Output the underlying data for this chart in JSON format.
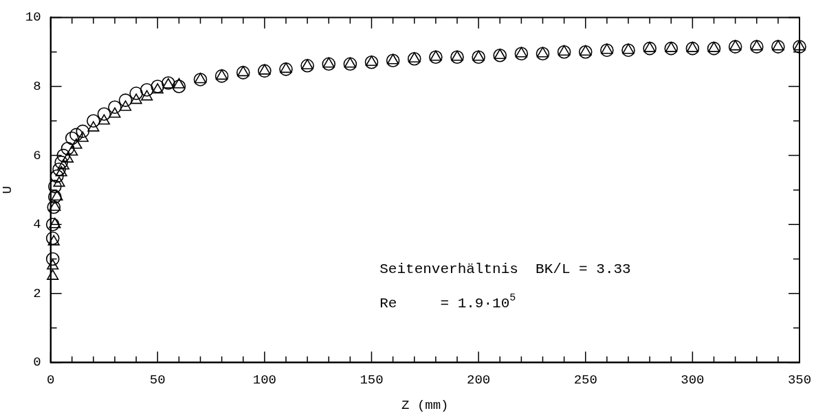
{
  "chart_data": {
    "type": "scatter",
    "xlabel": "Z (mm)",
    "ylabel": "U",
    "xlim": [
      0,
      350
    ],
    "ylim": [
      0,
      10
    ],
    "xticks": [
      0,
      {
        "value": 10,
        "label": null
      },
      {
        "value": 20,
        "label": null
      },
      {
        "value": 30,
        "label": null
      },
      {
        "value": 40,
        "label": null
      },
      50,
      {
        "value": 60,
        "label": null
      },
      {
        "value": 70,
        "label": null
      },
      {
        "value": 80,
        "label": null
      },
      {
        "value": 90,
        "label": null
      },
      100,
      {
        "value": 110,
        "label": null
      },
      {
        "value": 120,
        "label": null
      },
      {
        "value": 130,
        "label": null
      },
      {
        "value": 140,
        "label": null
      },
      150,
      {
        "value": 160,
        "label": null
      },
      {
        "value": 170,
        "label": null
      },
      {
        "value": 180,
        "label": null
      },
      {
        "value": 190,
        "label": null
      },
      200,
      {
        "value": 210,
        "label": null
      },
      {
        "value": 220,
        "label": null
      },
      {
        "value": 230,
        "label": null
      },
      {
        "value": 240,
        "label": null
      },
      250,
      {
        "value": 260,
        "label": null
      },
      {
        "value": 270,
        "label": null
      },
      {
        "value": 280,
        "label": null
      },
      {
        "value": 290,
        "label": null
      },
      300,
      {
        "value": 310,
        "label": null
      },
      {
        "value": 320,
        "label": null
      },
      {
        "value": 330,
        "label": null
      },
      {
        "value": 340,
        "label": null
      },
      350
    ],
    "yticks": [
      0,
      {
        "value": 1,
        "label": null
      },
      2,
      {
        "value": 3,
        "label": null
      },
      4,
      {
        "value": 5,
        "label": null
      },
      6,
      {
        "value": 7,
        "label": null
      },
      8,
      {
        "value": 9,
        "label": null
      },
      10
    ],
    "grid": false,
    "legend": false,
    "annotations": [
      {
        "text": "Seitenverhältnis  BK/L = 3.33"
      },
      {
        "text": "Re     = 1.9·10$^{5}$"
      }
    ],
    "series": [
      {
        "color": "#000000",
        "marker": "circle",
        "x": [
          1,
          1,
          1,
          1.5,
          2,
          2,
          3,
          4,
          5,
          6,
          8,
          10,
          12,
          15,
          20,
          25,
          30,
          35,
          40,
          45,
          50,
          55,
          60,
          70,
          80,
          90,
          100,
          110,
          120,
          130,
          140,
          150,
          160,
          170,
          180,
          190,
          200,
          210,
          220,
          230,
          240,
          250,
          260,
          270,
          280,
          290,
          300,
          310,
          320,
          330,
          340,
          350
        ],
        "values": [
          3.0,
          3.6,
          4.0,
          4.5,
          4.8,
          5.1,
          5.4,
          5.6,
          5.8,
          6.0,
          6.2,
          6.5,
          6.6,
          6.7,
          7.0,
          7.2,
          7.4,
          7.6,
          7.8,
          7.9,
          8.0,
          8.1,
          8.0,
          8.2,
          8.3,
          8.4,
          8.45,
          8.5,
          8.6,
          8.65,
          8.65,
          8.7,
          8.75,
          8.8,
          8.85,
          8.85,
          8.85,
          8.9,
          8.95,
          8.95,
          9.0,
          9.0,
          9.05,
          9.05,
          9.1,
          9.1,
          9.1,
          9.1,
          9.15,
          9.15,
          9.15,
          9.15
        ]
      },
      {
        "color": "#000000",
        "marker": "triangle",
        "x": [
          1,
          1,
          1.5,
          2,
          2,
          3,
          4,
          5,
          6,
          8,
          10,
          12,
          15,
          20,
          25,
          30,
          35,
          40,
          45,
          50,
          55,
          60,
          70,
          80,
          90,
          100,
          110,
          120,
          130,
          140,
          150,
          160,
          170,
          180,
          190,
          200,
          210,
          220,
          230,
          240,
          250,
          260,
          270,
          280,
          290,
          300,
          310,
          320,
          330,
          340,
          350
        ],
        "values": [
          2.5,
          2.8,
          3.5,
          4.0,
          4.5,
          4.8,
          5.2,
          5.5,
          5.7,
          5.9,
          6.1,
          6.3,
          6.5,
          6.8,
          7.0,
          7.2,
          7.4,
          7.6,
          7.7,
          7.9,
          8.05,
          8.05,
          8.2,
          8.3,
          8.4,
          8.45,
          8.5,
          8.6,
          8.65,
          8.65,
          8.7,
          8.75,
          8.8,
          8.85,
          8.85,
          8.85,
          8.9,
          8.95,
          8.95,
          9.0,
          9.0,
          9.05,
          9.05,
          9.1,
          9.1,
          9.1,
          9.1,
          9.15,
          9.15,
          9.15,
          9.15
        ]
      }
    ]
  }
}
